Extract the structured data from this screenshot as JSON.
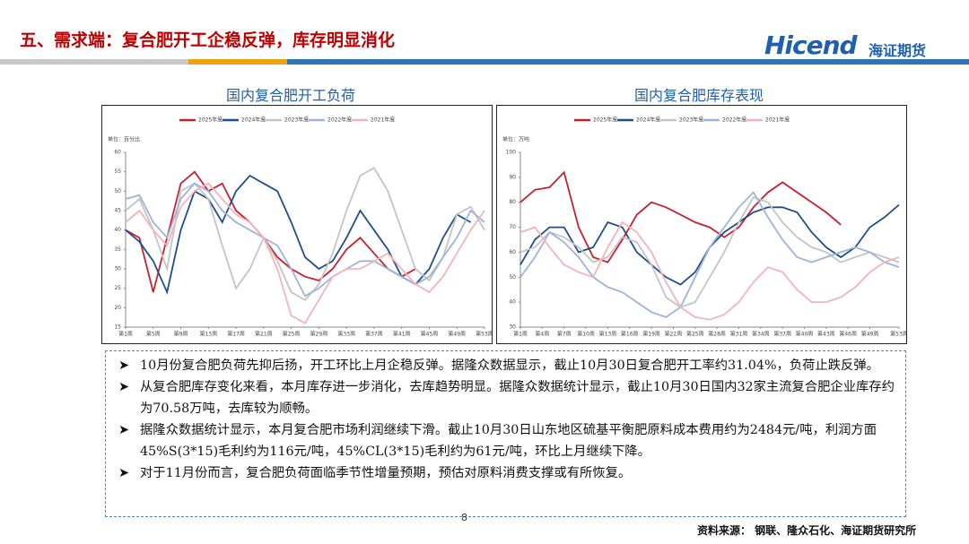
{
  "header": {
    "title": "五、需求端：复合肥开工企稳反弹，库存明显消化",
    "logo_text": "Hicend",
    "logo_cn": "海证期货"
  },
  "chart_data": [
    {
      "type": "line",
      "title": "国内复合肥开工负荷",
      "unit": "单位：百分比",
      "x": [
        1,
        3,
        5,
        7,
        9,
        11,
        13,
        15,
        17,
        19,
        21,
        23,
        25,
        27,
        29,
        31,
        33,
        35,
        37,
        39,
        41,
        43,
        45,
        47,
        49,
        51,
        53
      ],
      "xlim": [
        1,
        53
      ],
      "xticks": [
        {
          "value": 1,
          "label": "第1周"
        },
        {
          "value": 5,
          "label": "第5周"
        },
        {
          "value": 9,
          "label": "第9周"
        },
        {
          "value": 13,
          "label": "第13周"
        },
        {
          "value": 17,
          "label": "第17周"
        },
        {
          "value": 21,
          "label": "第21周"
        },
        {
          "value": 25,
          "label": "第25周"
        },
        {
          "value": 29,
          "label": "第29周"
        },
        {
          "value": 33,
          "label": "第33周"
        },
        {
          "value": 37,
          "label": "第37周"
        },
        {
          "value": 41,
          "label": "第41周"
        },
        {
          "value": 45,
          "label": "第45周"
        },
        {
          "value": 49,
          "label": "第49周"
        },
        {
          "value": 53,
          "label": "第53周"
        }
      ],
      "ylim": [
        15,
        60
      ],
      "yticks": [
        15,
        20,
        25,
        30,
        35,
        40,
        45,
        50,
        55,
        60
      ],
      "series": [
        {
          "name": "2025年度",
          "color": "#c8202f",
          "values": [
            40,
            38,
            24,
            38,
            52,
            55,
            50,
            52,
            45,
            42,
            38,
            33,
            30,
            28,
            27,
            30,
            35,
            38,
            34,
            30,
            28,
            30,
            null,
            null,
            null,
            null,
            null
          ]
        },
        {
          "name": "2024年度",
          "color": "#1f4e8c",
          "values": [
            40,
            37,
            32,
            24,
            40,
            50,
            48,
            42,
            50,
            54,
            52,
            50,
            42,
            33,
            30,
            32,
            38,
            45,
            40,
            35,
            28,
            26,
            30,
            38,
            44,
            42,
            null
          ]
        },
        {
          "name": "2023年度",
          "color": "#c4c4c4",
          "values": [
            45,
            48,
            40,
            30,
            50,
            52,
            48,
            36,
            25,
            30,
            38,
            32,
            24,
            22,
            26,
            34,
            45,
            54,
            56,
            50,
            40,
            30,
            27,
            33,
            44,
            46,
            40
          ]
        },
        {
          "name": "2022年度",
          "color": "#9db3dc",
          "values": [
            48,
            49,
            42,
            38,
            48,
            52,
            50,
            45,
            42,
            40,
            38,
            36,
            30,
            23,
            25,
            28,
            30,
            32,
            32,
            30,
            28,
            26,
            28,
            33,
            38,
            45,
            42
          ]
        },
        {
          "name": "2021年度",
          "color": "#f2b3bb",
          "values": [
            42,
            45,
            40,
            36,
            46,
            50,
            52,
            48,
            44,
            42,
            38,
            30,
            18,
            16,
            22,
            28,
            30,
            30,
            32,
            34,
            30,
            26,
            24,
            28,
            34,
            40,
            45
          ]
        }
      ]
    },
    {
      "type": "line",
      "title": "国内复合肥库存表现",
      "unit": "单位：万吨",
      "x": [
        1,
        3,
        5,
        7,
        9,
        11,
        13,
        15,
        17,
        19,
        21,
        23,
        25,
        27,
        29,
        31,
        33,
        35,
        37,
        39,
        41,
        43,
        45,
        47,
        49,
        51,
        53
      ],
      "xlim": [
        1,
        53
      ],
      "xticks": [
        {
          "value": 1,
          "label": "第1周"
        },
        {
          "value": 4,
          "label": "第4周"
        },
        {
          "value": 7,
          "label": "第7周"
        },
        {
          "value": 10,
          "label": "第10周"
        },
        {
          "value": 13,
          "label": "第13周"
        },
        {
          "value": 16,
          "label": "第16周"
        },
        {
          "value": 19,
          "label": "第19周"
        },
        {
          "value": 22,
          "label": "第22周"
        },
        {
          "value": 25,
          "label": "第25周"
        },
        {
          "value": 28,
          "label": "第28周"
        },
        {
          "value": 31,
          "label": "第31周"
        },
        {
          "value": 34,
          "label": "第34周"
        },
        {
          "value": 37,
          "label": "第37周"
        },
        {
          "value": 40,
          "label": "第40周"
        },
        {
          "value": 43,
          "label": "第43周"
        },
        {
          "value": 46,
          "label": "第46周"
        },
        {
          "value": 49,
          "label": "第49周"
        },
        {
          "value": 53,
          "label": "第53周"
        }
      ],
      "ylim": [
        30,
        100
      ],
      "yticks": [
        30,
        40,
        50,
        60,
        70,
        80,
        90,
        100
      ],
      "series": [
        {
          "name": "2025年度",
          "color": "#c8202f",
          "values": [
            80,
            85,
            86,
            92,
            70,
            58,
            56,
            65,
            75,
            80,
            78,
            75,
            72,
            70,
            66,
            70,
            78,
            84,
            88,
            84,
            80,
            76,
            71,
            null,
            null,
            null,
            null
          ]
        },
        {
          "name": "2024年度",
          "color": "#1f4e8c",
          "values": [
            55,
            65,
            70,
            70,
            60,
            62,
            72,
            70,
            60,
            55,
            50,
            47,
            52,
            62,
            68,
            72,
            76,
            78,
            78,
            76,
            68,
            62,
            58,
            62,
            70,
            74,
            79
          ]
        },
        {
          "name": "2023年度",
          "color": "#c4c4c4",
          "values": [
            60,
            62,
            68,
            66,
            62,
            56,
            58,
            66,
            64,
            55,
            42,
            38,
            40,
            50,
            60,
            72,
            82,
            80,
            72,
            66,
            62,
            60,
            56,
            58,
            60,
            58,
            56
          ]
        },
        {
          "name": "2022年度",
          "color": "#9db3dc",
          "values": [
            50,
            58,
            68,
            64,
            58,
            50,
            46,
            44,
            40,
            36,
            34,
            38,
            50,
            62,
            70,
            78,
            84,
            74,
            65,
            58,
            56,
            58,
            60,
            62,
            60,
            56,
            54
          ]
        },
        {
          "name": "2021年度",
          "color": "#f2b3bb",
          "values": [
            68,
            70,
            62,
            55,
            52,
            50,
            62,
            72,
            68,
            60,
            48,
            38,
            34,
            33,
            35,
            40,
            48,
            54,
            52,
            45,
            40,
            40,
            42,
            46,
            52,
            56,
            58
          ]
        }
      ]
    }
  ],
  "bullets": [
    "10月份复合肥负荷先抑后扬，开工环比上月企稳反弹。据隆众数据显示，截止10月30日复合肥开工率约31.04%，负荷止跌反弹。",
    "从复合肥库存变化来看，本月库存进一步消化，去库趋势明显。据隆众数据统计显示，截止10月30日国内32家主流复合肥企业库存约为70.58万吨，去库较为顺畅。",
    "据隆众数据统计显示，本月复合肥市场利润继续下滑。截止10月30日山东地区硫基平衡肥原料成本费用约为2484元/吨，利润方面45%S(3*15)毛利约为116元/吨，45%CL(3*15)毛利约为61元/吨，环比上月继续下降。",
    "对于11月份而言，复合肥负荷面临季节性增量预期，预估对原料消费支撑或有所恢复。"
  ],
  "page_number": "8",
  "source": "资料来源：  钢联、隆众石化、海证期货研究所"
}
